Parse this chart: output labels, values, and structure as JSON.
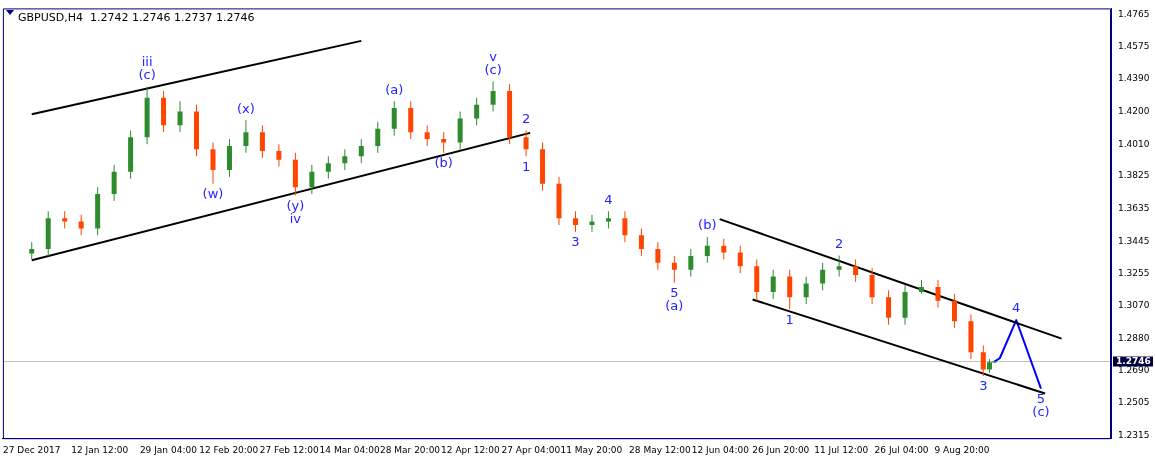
{
  "chart_data": {
    "type": "candlestick",
    "title": "GBPUSD,H4  1.2742 1.2746 1.2737 1.2746",
    "xlim": [
      "2017-12-20T00:00",
      "2018-09-15T00:00"
    ],
    "ylim": [
      1.23,
      1.48
    ],
    "xticks": [
      {
        "value": "2017-12-27T00:00",
        "label": "27 Dec 2017"
      },
      {
        "value": "2018-01-12T12:00",
        "label": "12 Jan 12:00"
      },
      {
        "value": "2018-01-29T04:00",
        "label": "29 Jan 04:00"
      },
      {
        "value": "2018-02-12T20:00",
        "label": "12 Feb 20:00"
      },
      {
        "value": "2018-02-27T12:00",
        "label": "27 Feb 12:00"
      },
      {
        "value": "2018-03-14T04:00",
        "label": "14 Mar 04:00"
      },
      {
        "value": "2018-03-28T20:00",
        "label": "28 Mar 20:00"
      },
      {
        "value": "2018-04-12T12:00",
        "label": "12 Apr 12:00"
      },
      {
        "value": "2018-04-27T04:00",
        "label": "27 Apr 04:00"
      },
      {
        "value": "2018-05-11T20:00",
        "label": "11 May 20:00"
      },
      {
        "value": "2018-05-28T12:00",
        "label": "28 May 12:00"
      },
      {
        "value": "2018-06-12T04:00",
        "label": "12 Jun 04:00"
      },
      {
        "value": "2018-06-26T20:00",
        "label": "26 Jun 20:00"
      },
      {
        "value": "2018-07-11T12:00",
        "label": "11 Jul 12:00"
      },
      {
        "value": "2018-07-26T04:00",
        "label": "26 Jul 04:00"
      },
      {
        "value": "2018-08-09T20:00",
        "label": "9 Aug 20:00"
      }
    ],
    "yticks": [
      {
        "value": 1.2315,
        "label": "1.2315"
      },
      {
        "value": 1.2505,
        "label": "1.2505"
      },
      {
        "value": 1.269,
        "label": "1.2690"
      },
      {
        "value": 1.288,
        "label": "1.2880"
      },
      {
        "value": 1.307,
        "label": "1.3070"
      },
      {
        "value": 1.3255,
        "label": "1.3255"
      },
      {
        "value": 1.3445,
        "label": "1.3445"
      },
      {
        "value": 1.3635,
        "label": "1.3635"
      },
      {
        "value": 1.3825,
        "label": "1.3825"
      },
      {
        "value": 1.401,
        "label": "1.4010"
      },
      {
        "value": 1.42,
        "label": "1.4200"
      },
      {
        "value": 1.439,
        "label": "1.4390"
      },
      {
        "value": 1.4575,
        "label": "1.4575"
      },
      {
        "value": 1.4765,
        "label": "1.4765"
      }
    ],
    "ref_lines": [
      {
        "axis": "y",
        "value": 1.2746,
        "label": "1.2746",
        "color": "#c0c0c0"
      }
    ],
    "series": [
      {
        "x": [
          "2017-12-27",
          "2017-12-31",
          "2018-01-04",
          "2018-01-08",
          "2018-01-12",
          "2018-01-16",
          "2018-01-20",
          "2018-01-24",
          "2018-01-28",
          "2018-02-01",
          "2018-02-05",
          "2018-02-09",
          "2018-02-13",
          "2018-02-17",
          "2018-02-21",
          "2018-02-25",
          "2018-03-01",
          "2018-03-05",
          "2018-03-09",
          "2018-03-13",
          "2018-03-17",
          "2018-03-21",
          "2018-03-25",
          "2018-03-29",
          "2018-04-02",
          "2018-04-06",
          "2018-04-10",
          "2018-04-14",
          "2018-04-18",
          "2018-04-22",
          "2018-04-26",
          "2018-04-30",
          "2018-05-04",
          "2018-05-08",
          "2018-05-12",
          "2018-05-16",
          "2018-05-20",
          "2018-05-24",
          "2018-05-28",
          "2018-06-01",
          "2018-06-05",
          "2018-06-09",
          "2018-06-13",
          "2018-06-17",
          "2018-06-21",
          "2018-06-25",
          "2018-06-29",
          "2018-07-03",
          "2018-07-07",
          "2018-07-11",
          "2018-07-15",
          "2018-07-19",
          "2018-07-23",
          "2018-07-27",
          "2018-07-31",
          "2018-08-04",
          "2018-08-08",
          "2018-08-12",
          "2018-08-15",
          "2018-08-16T12:00",
          "2018-08-17T16:00"
        ],
        "ohlc": [
          [
            1.3375,
            1.344,
            1.334,
            1.34
          ],
          [
            1.34,
            1.362,
            1.336,
            1.358
          ],
          [
            1.358,
            1.362,
            1.352,
            1.356
          ],
          [
            1.356,
            1.36,
            1.348,
            1.352
          ],
          [
            1.352,
            1.376,
            1.348,
            1.372
          ],
          [
            1.372,
            1.389,
            1.368,
            1.385
          ],
          [
            1.385,
            1.409,
            1.381,
            1.405
          ],
          [
            1.405,
            1.4345,
            1.401,
            1.428
          ],
          [
            1.428,
            1.432,
            1.408,
            1.412
          ],
          [
            1.412,
            1.426,
            1.408,
            1.42
          ],
          [
            1.42,
            1.424,
            1.394,
            1.398
          ],
          [
            1.398,
            1.402,
            1.378,
            1.386
          ],
          [
            1.386,
            1.404,
            1.382,
            1.4
          ],
          [
            1.4,
            1.415,
            1.396,
            1.408
          ],
          [
            1.408,
            1.412,
            1.393,
            1.397
          ],
          [
            1.397,
            1.401,
            1.388,
            1.392
          ],
          [
            1.392,
            1.396,
            1.3712,
            1.376
          ],
          [
            1.376,
            1.389,
            1.372,
            1.385
          ],
          [
            1.385,
            1.394,
            1.381,
            1.39
          ],
          [
            1.39,
            1.398,
            1.386,
            1.394
          ],
          [
            1.394,
            1.404,
            1.39,
            1.4
          ],
          [
            1.4,
            1.414,
            1.396,
            1.41
          ],
          [
            1.41,
            1.426,
            1.406,
            1.422
          ],
          [
            1.422,
            1.426,
            1.404,
            1.408
          ],
          [
            1.408,
            1.412,
            1.4,
            1.404
          ],
          [
            1.404,
            1.408,
            1.396,
            1.402
          ],
          [
            1.402,
            1.42,
            1.398,
            1.416
          ],
          [
            1.416,
            1.428,
            1.412,
            1.424
          ],
          [
            1.424,
            1.4376,
            1.42,
            1.432
          ],
          [
            1.432,
            1.436,
            1.401,
            1.405
          ],
          [
            1.405,
            1.409,
            1.394,
            1.398
          ],
          [
            1.398,
            1.402,
            1.374,
            1.378
          ],
          [
            1.378,
            1.382,
            1.354,
            1.358
          ],
          [
            1.358,
            1.362,
            1.35,
            1.354
          ],
          [
            1.354,
            1.36,
            1.35,
            1.356
          ],
          [
            1.356,
            1.362,
            1.352,
            1.358
          ],
          [
            1.358,
            1.362,
            1.344,
            1.348
          ],
          [
            1.348,
            1.352,
            1.336,
            1.34
          ],
          [
            1.34,
            1.344,
            1.328,
            1.332
          ],
          [
            1.332,
            1.336,
            1.3204,
            1.328
          ],
          [
            1.328,
            1.34,
            1.324,
            1.336
          ],
          [
            1.336,
            1.347,
            1.332,
            1.342
          ],
          [
            1.342,
            1.346,
            1.334,
            1.338
          ],
          [
            1.338,
            1.342,
            1.326,
            1.33
          ],
          [
            1.33,
            1.334,
            1.31,
            1.315
          ],
          [
            1.315,
            1.328,
            1.311,
            1.324
          ],
          [
            1.324,
            1.328,
            1.305,
            1.312
          ],
          [
            1.312,
            1.324,
            1.308,
            1.32
          ],
          [
            1.32,
            1.332,
            1.316,
            1.328
          ],
          [
            1.328,
            1.3362,
            1.324,
            1.33
          ],
          [
            1.33,
            1.334,
            1.321,
            1.325
          ],
          [
            1.325,
            1.329,
            1.308,
            1.312
          ],
          [
            1.312,
            1.316,
            1.296,
            1.3
          ],
          [
            1.3,
            1.319,
            1.296,
            1.315
          ],
          [
            1.315,
            1.322,
            1.314,
            1.318
          ],
          [
            1.318,
            1.322,
            1.306,
            1.31
          ],
          [
            1.31,
            1.314,
            1.294,
            1.298
          ],
          [
            1.298,
            1.302,
            1.276,
            1.28
          ],
          [
            1.28,
            1.284,
            1.2662,
            1.27
          ],
          [
            1.27,
            1.276,
            1.268,
            1.2742
          ],
          [
            1.2742,
            1.2746,
            1.2737,
            1.2746
          ]
        ],
        "colors": [
          "#2e8b2e",
          "#2e8b2e",
          "#ff4500",
          "#ff4500",
          "#2e8b2e",
          "#2e8b2e",
          "#2e8b2e",
          "#2e8b2e",
          "#ff4500",
          "#2e8b2e",
          "#ff4500",
          "#ff4500",
          "#2e8b2e",
          "#2e8b2e",
          "#ff4500",
          "#ff4500",
          "#ff4500",
          "#2e8b2e",
          "#2e8b2e",
          "#2e8b2e",
          "#2e8b2e",
          "#2e8b2e",
          "#2e8b2e",
          "#ff4500",
          "#ff4500",
          "#ff4500",
          "#2e8b2e",
          "#2e8b2e",
          "#2e8b2e",
          "#ff4500",
          "#ff4500",
          "#ff4500",
          "#ff4500",
          "#ff4500",
          "#2e8b2e",
          "#2e8b2e",
          "#ff4500",
          "#ff4500",
          "#ff4500",
          "#ff4500",
          "#2e8b2e",
          "#2e8b2e",
          "#ff4500",
          "#ff4500",
          "#ff4500",
          "#2e8b2e",
          "#ff4500",
          "#2e8b2e",
          "#2e8b2e",
          "#2e8b2e",
          "#ff4500",
          "#ff4500",
          "#ff4500",
          "#2e8b2e",
          "#2e8b2e",
          "#ff4500",
          "#ff4500",
          "#ff4500",
          "#ff4500",
          "#2e8b2e",
          "#2e8b2e"
        ]
      },
      {
        "type": "line",
        "color": "#000000",
        "x": [
          "2017-12-27",
          "2018-03-17"
        ],
        "values": [
          1.4184,
          1.4611
        ]
      },
      {
        "type": "line",
        "color": "#000000",
        "x": [
          "2017-12-27",
          "2018-04-27"
        ],
        "values": [
          1.3335,
          1.4076
        ]
      },
      {
        "type": "line",
        "color": "#000000",
        "x": [
          "2018-06-12",
          "2018-09-03"
        ],
        "values": [
          1.3574,
          1.2879
        ]
      },
      {
        "type": "line",
        "color": "#000000",
        "x": [
          "2018-06-20",
          "2018-08-30"
        ],
        "values": [
          1.3107,
          1.256
        ]
      },
      {
        "type": "line",
        "color": "#0000ff",
        "x": [
          "2018-08-17T16:00",
          "2018-08-19",
          "2018-08-23",
          "2018-08-29"
        ],
        "values": [
          1.2746,
          1.2765,
          1.2987,
          1.2588
        ]
      }
    ],
    "annotations": [
      {
        "text": "(c)",
        "x": "2018-01-24",
        "y": 1.4345
      },
      {
        "text": "iii",
        "x": "2018-01-24",
        "y": 1.4345
      },
      {
        "text": "(w)",
        "x": "2018-02-09",
        "y": 1.378
      },
      {
        "text": "(x)",
        "x": "2018-02-17",
        "y": 1.415
      },
      {
        "text": "(y)",
        "x": "2018-03-01",
        "y": 1.3712
      },
      {
        "text": "iv",
        "x": "2018-03-01",
        "y": 1.3712
      },
      {
        "text": "(a)",
        "x": "2018-03-25",
        "y": 1.426
      },
      {
        "text": "(b)",
        "x": "2018-04-06",
        "y": 1.396
      },
      {
        "text": "(c)",
        "x": "2018-04-18",
        "y": 1.4376
      },
      {
        "text": "v",
        "x": "2018-04-18",
        "y": 1.4376
      },
      {
        "text": "1",
        "x": "2018-04-26",
        "y": 1.394
      },
      {
        "text": "2",
        "x": "2018-04-26",
        "y": 1.409
      },
      {
        "text": "3",
        "x": "2018-05-08",
        "y": 1.35
      },
      {
        "text": "4",
        "x": "2018-05-16",
        "y": 1.362
      },
      {
        "text": "5",
        "x": "2018-06-01",
        "y": 1.3204
      },
      {
        "text": "(a)",
        "x": "2018-06-01",
        "y": 1.3204
      },
      {
        "text": "(b)",
        "x": "2018-06-09",
        "y": 1.347
      },
      {
        "text": "1",
        "x": "2018-06-29",
        "y": 1.305
      },
      {
        "text": "2",
        "x": "2018-07-11",
        "y": 1.3362
      },
      {
        "text": "3",
        "x": "2018-08-15",
        "y": 1.2662
      },
      {
        "text": "4",
        "x": "2018-08-23",
        "y": 1.2987
      },
      {
        "text": "5",
        "x": "2018-08-29",
        "y": 1.2588
      },
      {
        "text": "(c)",
        "x": "2018-08-29",
        "y": 1.2588
      }
    ]
  }
}
